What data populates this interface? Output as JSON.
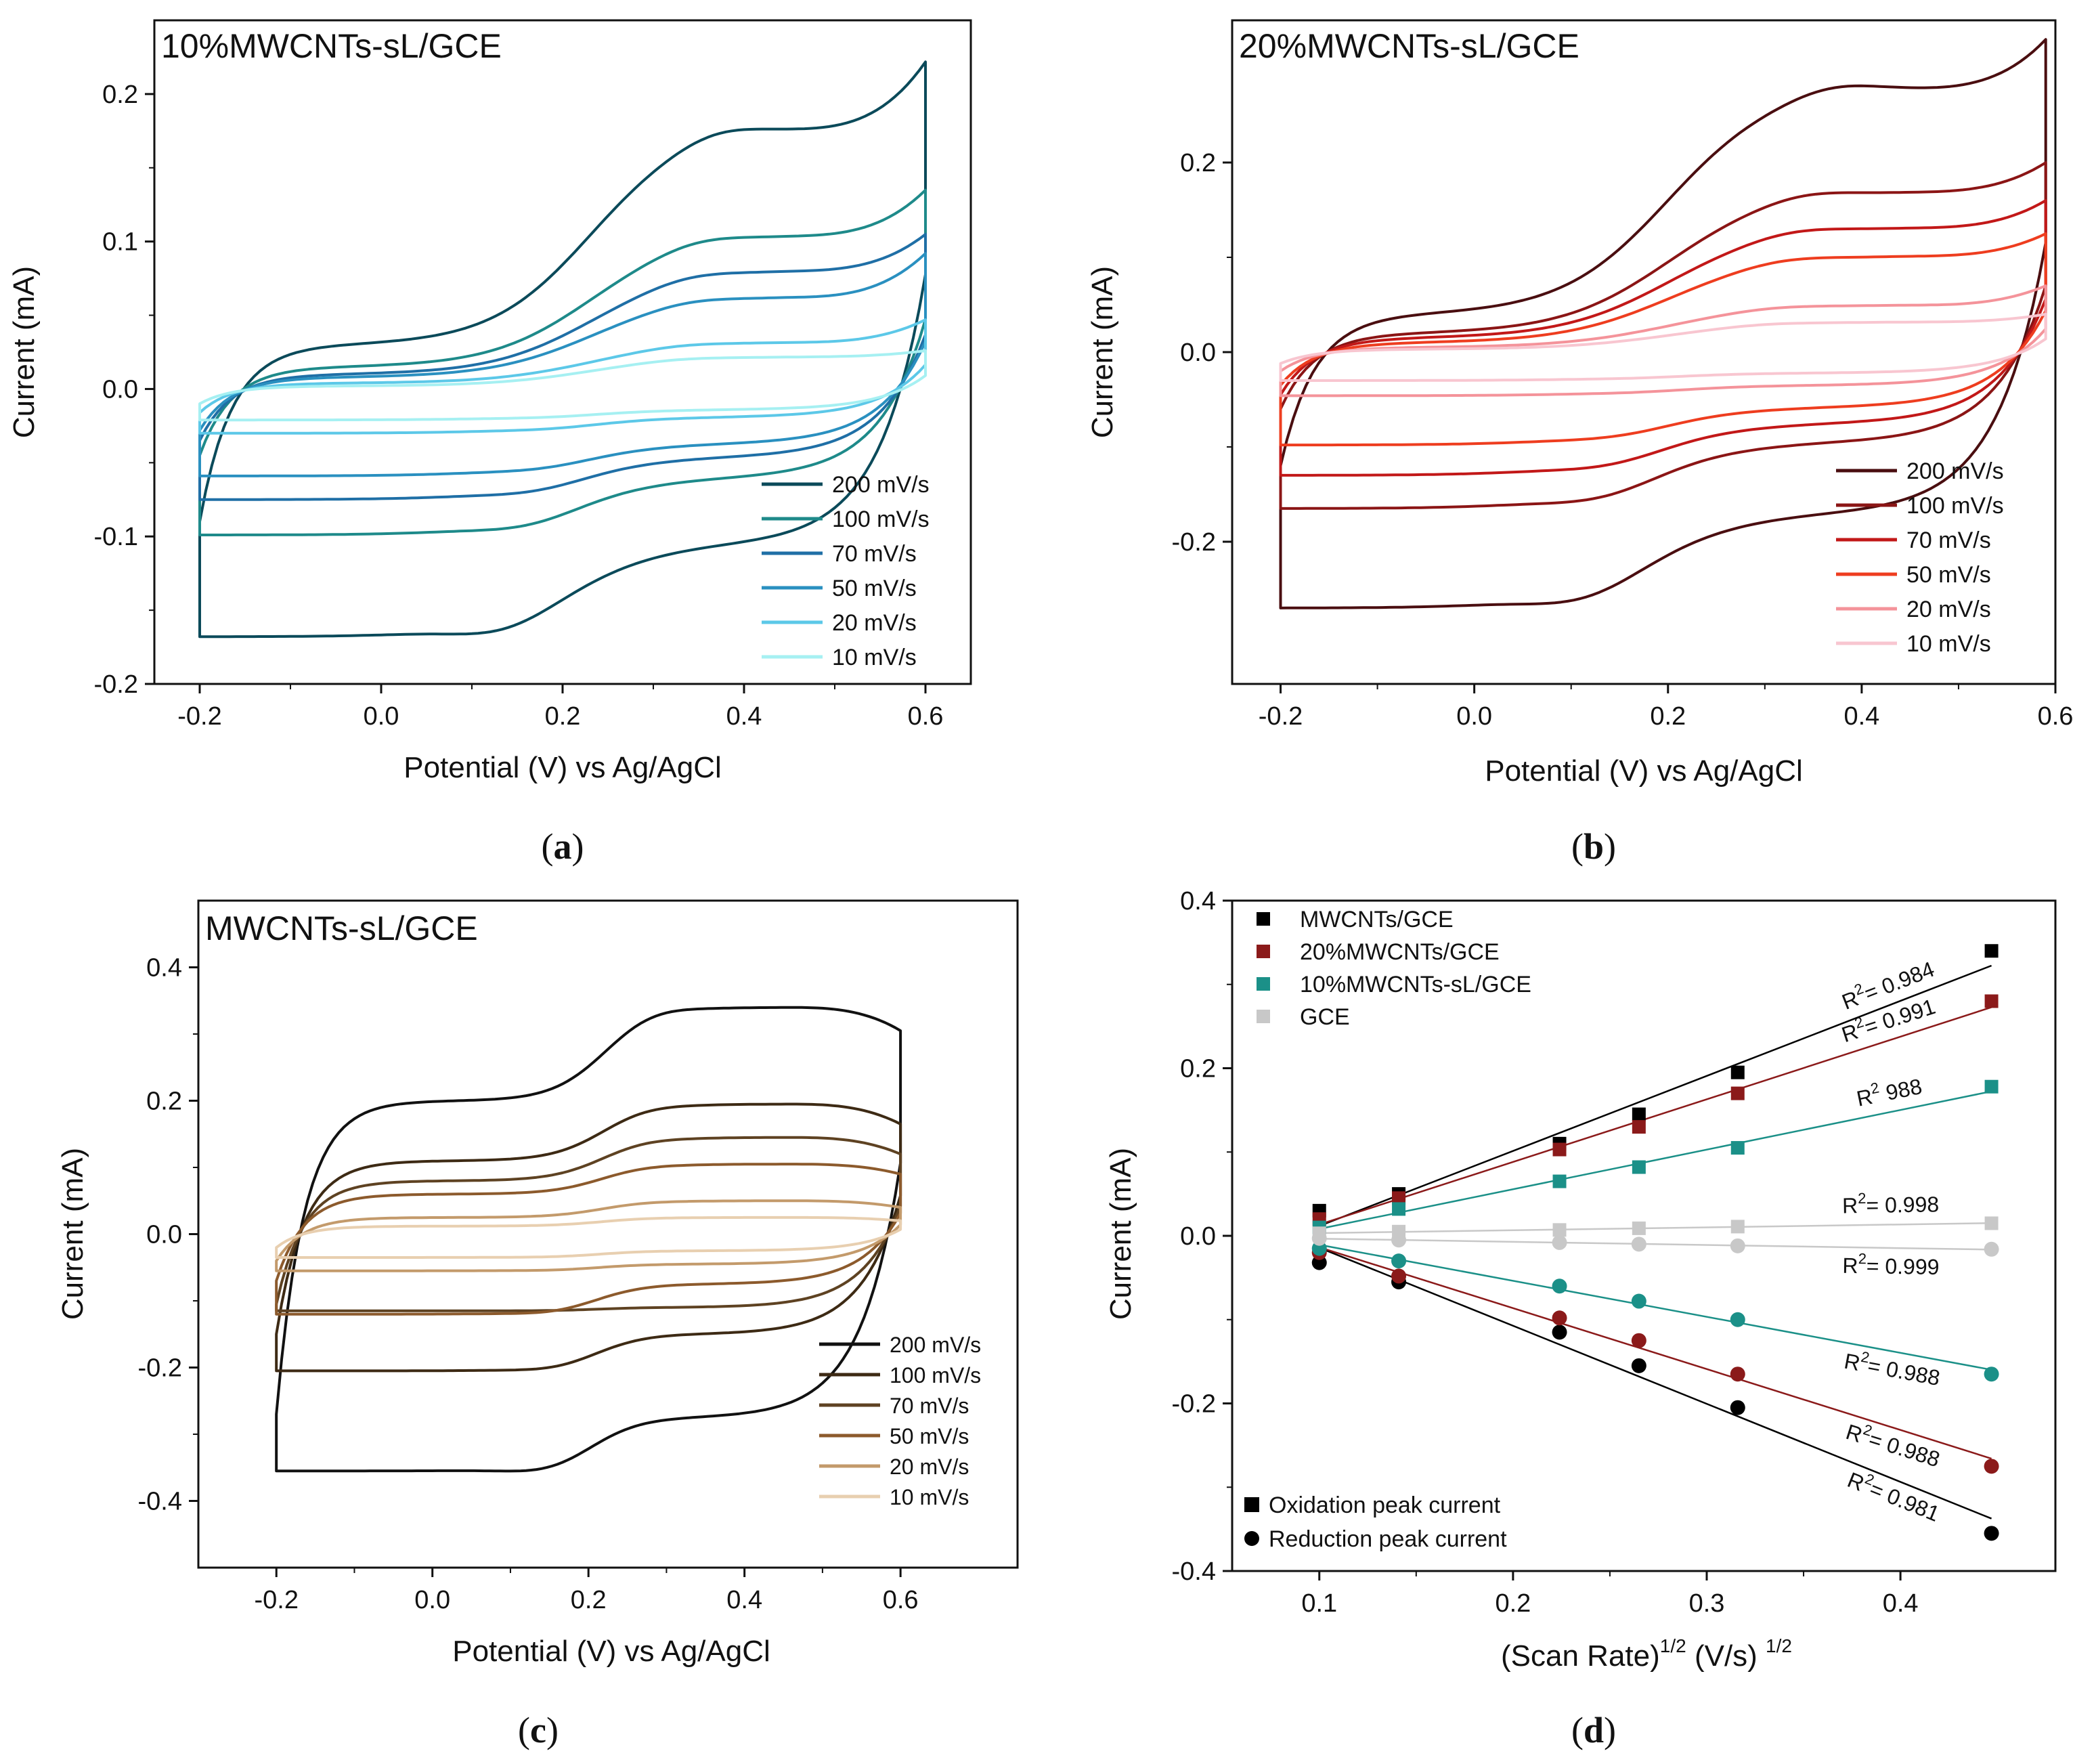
{
  "chart_data": [
    {
      "id": "a",
      "type": "line",
      "panel_label": "a",
      "title": "10%MWCNTs-sL/GCE",
      "xlabel": "Potential (V) vs Ag/AgCl",
      "ylabel": "Current (mA)",
      "xlim": [
        -0.25,
        0.65
      ],
      "ylim": [
        -0.2,
        0.25
      ],
      "xticks": [
        -0.2,
        0.0,
        0.2,
        0.4,
        0.6
      ],
      "xtick_labels": [
        "-0.2",
        "0.0",
        "0.2",
        "0.4",
        "0.6"
      ],
      "yticks": [
        -0.2,
        -0.1,
        0.0,
        0.1,
        0.2
      ],
      "ytick_labels": [
        "-0.2",
        "-0.1",
        "0.0",
        "0.1",
        "0.2"
      ],
      "legend_position": "bottom-right",
      "curve_shape": {
        "E1": -0.2,
        "E2": 0.6,
        "E0": 0.23,
        "width": 0.055,
        "zero_x": 0.53
      },
      "series": [
        {
          "name": "200 mV/s",
          "color": "#0b4a5a",
          "ox_peak": 0.178,
          "ox_peak_x": 0.37,
          "ox_end": 0.222,
          "red_peak": -0.168,
          "red_peak_x": 0.14,
          "start_top": -0.09,
          "start_bot": -0.104,
          "base_ox": 0.03,
          "base_red": -0.105
        },
        {
          "name": "100 mV/s",
          "color": "#1e8a8a",
          "ox_peak": 0.105,
          "ox_peak_x": 0.35,
          "ox_end": 0.135,
          "red_peak": -0.099,
          "red_peak_x": 0.17,
          "start_top": -0.045,
          "start_bot": -0.06,
          "base_ox": 0.015,
          "base_red": -0.06
        },
        {
          "name": "70 mV/s",
          "color": "#1f6fa6",
          "ox_peak": 0.081,
          "ox_peak_x": 0.34,
          "ox_end": 0.105,
          "red_peak": -0.075,
          "red_peak_x": 0.18,
          "start_top": -0.035,
          "start_bot": -0.046,
          "base_ox": 0.01,
          "base_red": -0.046
        },
        {
          "name": "50 mV/s",
          "color": "#2a90c0",
          "ox_peak": 0.063,
          "ox_peak_x": 0.34,
          "ox_end": 0.092,
          "red_peak": -0.059,
          "red_peak_x": 0.19,
          "start_top": -0.028,
          "start_bot": -0.037,
          "base_ox": 0.008,
          "base_red": -0.037
        },
        {
          "name": "20 mV/s",
          "color": "#5cc8e8",
          "ox_peak": 0.032,
          "ox_peak_x": 0.33,
          "ox_end": 0.047,
          "red_peak": -0.03,
          "red_peak_x": 0.2,
          "start_top": -0.016,
          "start_bot": -0.019,
          "base_ox": 0.004,
          "base_red": -0.019
        },
        {
          "name": "10 mV/s",
          "color": "#a6f0f2",
          "ox_peak": 0.022,
          "ox_peak_x": 0.33,
          "ox_end": 0.026,
          "red_peak": -0.021,
          "red_peak_x": 0.2,
          "start_top": -0.01,
          "start_bot": -0.014,
          "base_ox": 0.002,
          "base_red": -0.014
        }
      ]
    },
    {
      "id": "b",
      "type": "line",
      "panel_label": "b",
      "title": "20%MWCNTs-sL/GCE",
      "xlabel": "Potential (V) vs Ag/AgCl",
      "ylabel": "Current (mA)",
      "xlim": [
        -0.25,
        0.6
      ],
      "ylim": [
        -0.35,
        0.35
      ],
      "xticks": [
        -0.2,
        0.0,
        0.2,
        0.4,
        0.6
      ],
      "xtick_labels": [
        "-0.2",
        "0.0",
        "0.2",
        "0.4",
        "0.6"
      ],
      "yticks": [
        -0.2,
        0.0,
        0.2
      ],
      "ytick_labels": [
        "-0.2",
        "0.0",
        "0.2"
      ],
      "legend_position": "bottom-right",
      "curve_shape": {
        "E1": -0.2,
        "E2": 0.59,
        "E0": 0.2,
        "width": 0.055,
        "zero_x": 0.54
      },
      "series": [
        {
          "name": "200 mV/s",
          "color": "#4a0e10",
          "ox_peak": 0.28,
          "ox_peak_x": 0.37,
          "ox_end": 0.33,
          "red_peak": -0.27,
          "red_peak_x": 0.12,
          "start_top": -0.12,
          "start_bot": -0.17,
          "base_ox": 0.04,
          "base_red": -0.17
        },
        {
          "name": "100 mV/s",
          "color": "#8b1515",
          "ox_peak": 0.17,
          "ox_peak_x": 0.34,
          "ox_end": 0.2,
          "red_peak": -0.165,
          "red_peak_x": 0.14,
          "start_top": -0.06,
          "start_bot": -0.095,
          "base_ox": 0.02,
          "base_red": -0.095
        },
        {
          "name": "70 mV/s",
          "color": "#c21818",
          "ox_peak": 0.132,
          "ox_peak_x": 0.33,
          "ox_end": 0.16,
          "red_peak": -0.13,
          "red_peak_x": 0.15,
          "start_top": -0.045,
          "start_bot": -0.075,
          "base_ox": 0.015,
          "base_red": -0.075
        },
        {
          "name": "50 mV/s",
          "color": "#ee3d1f",
          "ox_peak": 0.102,
          "ox_peak_x": 0.32,
          "ox_end": 0.125,
          "red_peak": -0.098,
          "red_peak_x": 0.16,
          "start_top": -0.035,
          "start_bot": -0.058,
          "base_ox": 0.01,
          "base_red": -0.058
        },
        {
          "name": "20 mV/s",
          "color": "#f4939a",
          "ox_peak": 0.05,
          "ox_peak_x": 0.31,
          "ox_end": 0.07,
          "red_peak": -0.046,
          "red_peak_x": 0.18,
          "start_top": -0.02,
          "start_bot": -0.035,
          "base_ox": 0.005,
          "base_red": -0.035
        },
        {
          "name": "10 mV/s",
          "color": "#f8c6d0",
          "ox_peak": 0.032,
          "ox_peak_x": 0.3,
          "ox_end": 0.04,
          "red_peak": -0.03,
          "red_peak_x": 0.18,
          "start_top": -0.012,
          "start_bot": -0.022,
          "base_ox": 0.003,
          "base_red": -0.022
        }
      ]
    },
    {
      "id": "c",
      "type": "line",
      "panel_label": "c",
      "title": "MWCNTs-sL/GCE",
      "xlabel": "Potential (V) vs Ag/AgCl",
      "ylabel": "Current (mA)",
      "xlim": [
        -0.3,
        0.75
      ],
      "ylim": [
        -0.5,
        0.5
      ],
      "xticks": [
        -0.2,
        0.0,
        0.2,
        0.4,
        0.6
      ],
      "xtick_labels": [
        "-0.2",
        "0.0",
        "0.2",
        "0.4",
        "0.6"
      ],
      "yticks": [
        -0.4,
        -0.2,
        0.0,
        0.2,
        0.4
      ],
      "ytick_labels": [
        "-0.4",
        "-0.2",
        "0.0",
        "0.2",
        "0.4"
      ],
      "legend_position": "bottom-right",
      "curve_shape": {
        "E1": -0.2,
        "E2": 0.6,
        "E0": 0.22,
        "width": 0.035,
        "zero_x": 0.59
      },
      "series": [
        {
          "name": "200 mV/s",
          "color": "#111111",
          "ox_peak": 0.34,
          "ox_peak_x": 0.28,
          "ox_end": 0.305,
          "red_peak": -0.355,
          "red_peak_x": 0.16,
          "start_top": -0.27,
          "start_bot": -0.275,
          "base_ox": 0.2,
          "base_red": -0.275
        },
        {
          "name": "100 mV/s",
          "color": "#3d2a14",
          "ox_peak": 0.195,
          "ox_peak_x": 0.26,
          "ox_end": 0.165,
          "red_peak": -0.205,
          "red_peak_x": 0.18,
          "start_top": -0.15,
          "start_bot": -0.15,
          "base_ox": 0.11,
          "base_red": -0.15
        },
        {
          "name": "70 mV/s",
          "color": "#5e4222",
          "ox_peak": 0.145,
          "ox_peak_x": 0.255,
          "ox_end": 0.12,
          "red_peak": -0.115,
          "red_peak_x": 0.18,
          "start_top": -0.105,
          "start_bot": -0.11,
          "base_ox": 0.08,
          "base_red": -0.11
        },
        {
          "name": "50 mV/s",
          "color": "#8c5a2c",
          "ox_peak": 0.105,
          "ox_peak_x": 0.25,
          "ox_end": 0.09,
          "red_peak": -0.12,
          "red_peak_x": 0.18,
          "start_top": -0.07,
          "start_bot": -0.075,
          "base_ox": 0.06,
          "base_red": -0.075
        },
        {
          "name": "20 mV/s",
          "color": "#c39a6b",
          "ox_peak": 0.05,
          "ox_peak_x": 0.25,
          "ox_end": 0.04,
          "red_peak": -0.055,
          "red_peak_x": 0.19,
          "start_top": -0.04,
          "start_bot": -0.045,
          "base_ox": 0.025,
          "base_red": -0.045
        },
        {
          "name": "10 mV/s",
          "color": "#e8cfb0",
          "ox_peak": 0.025,
          "ox_peak_x": 0.25,
          "ox_end": 0.02,
          "red_peak": -0.035,
          "red_peak_x": 0.19,
          "start_top": -0.02,
          "start_bot": -0.025,
          "base_ox": 0.012,
          "base_red": -0.025
        }
      ]
    },
    {
      "id": "d",
      "type": "scatter",
      "panel_label": "d",
      "xlabel_main": "(Scan Rate)",
      "xlabel_sup": "1/2",
      "xlabel_unit": " (V/s) ",
      "xlabel_unit_sup": "1/2",
      "ylabel": "Current (mA)",
      "xlim": [
        0.055,
        0.48
      ],
      "ylim": [
        -0.4,
        0.4
      ],
      "xticks": [
        0.1,
        0.2,
        0.3,
        0.4
      ],
      "xtick_labels": [
        "0.1",
        "0.2",
        "0.3",
        "0.4"
      ],
      "yticks": [
        -0.4,
        -0.2,
        0.0,
        0.2,
        0.4
      ],
      "ytick_labels": [
        "-0.4",
        "-0.2",
        "0.0",
        "0.2",
        "0.4"
      ],
      "x": [
        0.1,
        0.141,
        0.224,
        0.265,
        0.316,
        0.447
      ],
      "legend_series_position": "top-left",
      "legend_marker_position": "bottom-left",
      "marker_legend": [
        {
          "label": "Oxidation peak current",
          "marker": "square"
        },
        {
          "label": "Reduction peak current",
          "marker": "circle"
        }
      ],
      "series": [
        {
          "name": "MWCNTs/GCE",
          "color": "#000000",
          "oxidation": [
            0.03,
            0.05,
            0.11,
            0.145,
            0.195,
            0.34
          ],
          "reduction": [
            -0.032,
            -0.055,
            -0.115,
            -0.155,
            -0.205,
            -0.355
          ],
          "r2_ox_label": "= 0.984",
          "r2_red_label": "= 0.981"
        },
        {
          "name": "20%MWCNTs/GCE",
          "color": "#8b1a1a",
          "oxidation": [
            0.02,
            0.045,
            0.103,
            0.13,
            0.17,
            0.28
          ],
          "reduction": [
            -0.02,
            -0.048,
            -0.098,
            -0.125,
            -0.165,
            -0.275
          ],
          "r2_ox_label": "= 0.991",
          "r2_red_label": "= 0.988"
        },
        {
          "name": "10%MWCNTs-sL/GCE",
          "color": "#1b9088",
          "oxidation": [
            0.01,
            0.032,
            0.065,
            0.082,
            0.105,
            0.178
          ],
          "reduction": [
            -0.015,
            -0.03,
            -0.06,
            -0.078,
            -0.1,
            -0.165
          ],
          "r2_ox_label": " 988",
          "r2_red_label": "= 0.988"
        },
        {
          "name": "GCE",
          "color": "#c8c8c8",
          "oxidation": [
            0.003,
            0.005,
            0.007,
            0.009,
            0.011,
            0.015
          ],
          "reduction": [
            -0.003,
            -0.005,
            -0.008,
            -0.01,
            -0.012,
            -0.016
          ],
          "r2_ox_label": "= 0.998",
          "r2_red_label": "= 0.999"
        }
      ],
      "r2_prefix": "R",
      "r2_sup": "2"
    }
  ]
}
